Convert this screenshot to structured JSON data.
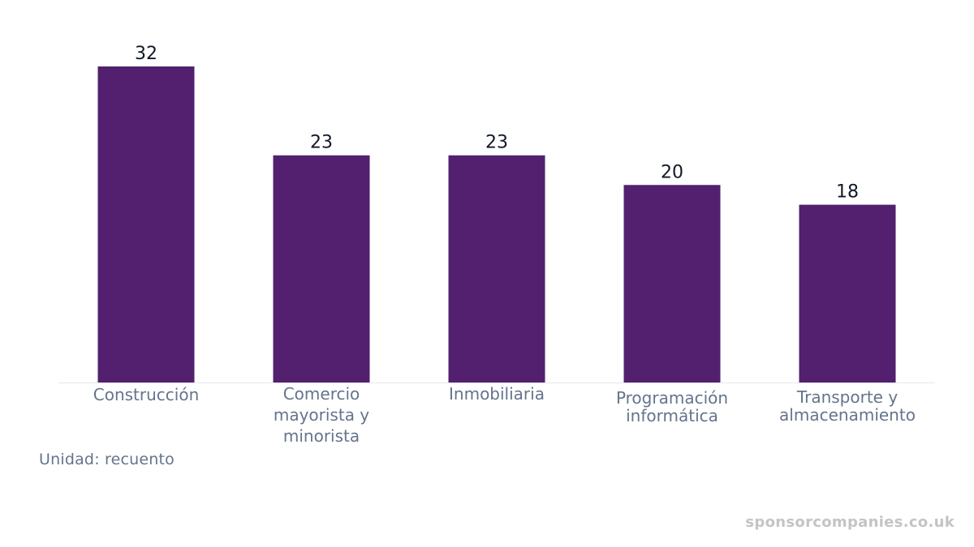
{
  "chart_data": {
    "type": "bar",
    "categories": [
      "Construcción",
      "Comercio mayorista y minorista",
      "Inmobiliaria",
      "Programación informática",
      "Transporte y almacenamiento"
    ],
    "category_lines": [
      [
        "Construcción"
      ],
      [
        "Comercio",
        "mayorista y",
        "minorista"
      ],
      [
        "Inmobiliaria"
      ],
      [
        "Programación",
        "informática"
      ],
      [
        "Transporte y",
        "almacenamiento"
      ]
    ],
    "values": [
      32,
      23,
      23,
      20,
      18
    ],
    "data_labels": [
      "32",
      "23",
      "23",
      "20",
      "18"
    ],
    "ylim": [
      0,
      32
    ],
    "grid": false,
    "bar_color": "#52206f",
    "axis_color": "#e5e7eb",
    "unit_label": "Unidad: recuento"
  },
  "watermark": "sponsorcompanies.co.uk"
}
